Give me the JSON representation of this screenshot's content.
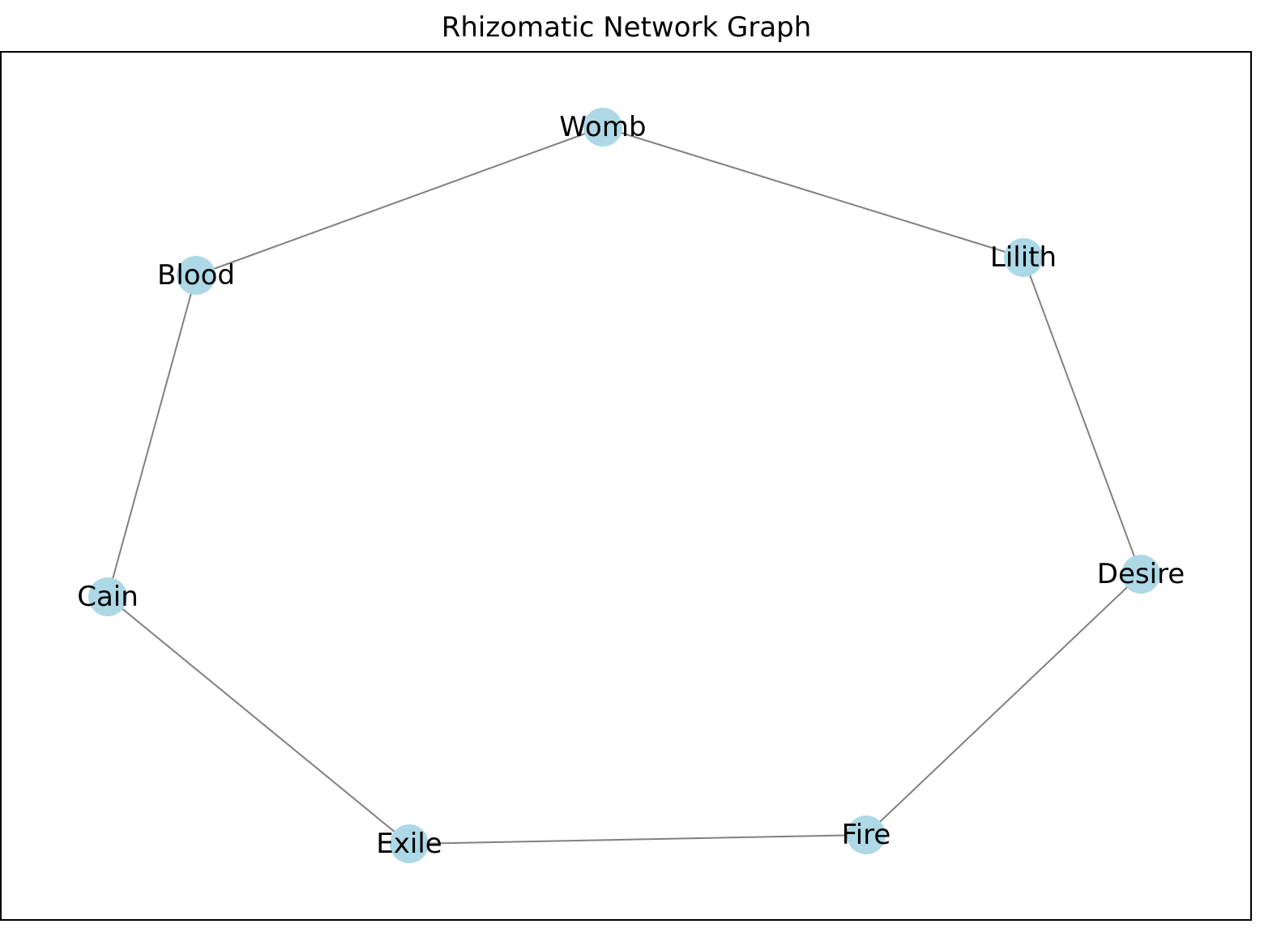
{
  "diagram": {
    "title": "Rhizomatic Network Graph",
    "node_color": "#add8e6",
    "edge_color": "#808080",
    "frame_color": "#000000",
    "nodes": [
      {
        "id": "womb",
        "label": "Womb"
      },
      {
        "id": "lilith",
        "label": "Lilith"
      },
      {
        "id": "desire",
        "label": "Desire"
      },
      {
        "id": "fire",
        "label": "Fire"
      },
      {
        "id": "exile",
        "label": "Exile"
      },
      {
        "id": "cain",
        "label": "Cain"
      },
      {
        "id": "blood",
        "label": "Blood"
      }
    ],
    "edges": [
      [
        "womb",
        "lilith"
      ],
      [
        "lilith",
        "desire"
      ],
      [
        "desire",
        "fire"
      ],
      [
        "fire",
        "exile"
      ],
      [
        "exile",
        "cain"
      ],
      [
        "cain",
        "blood"
      ],
      [
        "blood",
        "womb"
      ]
    ]
  }
}
